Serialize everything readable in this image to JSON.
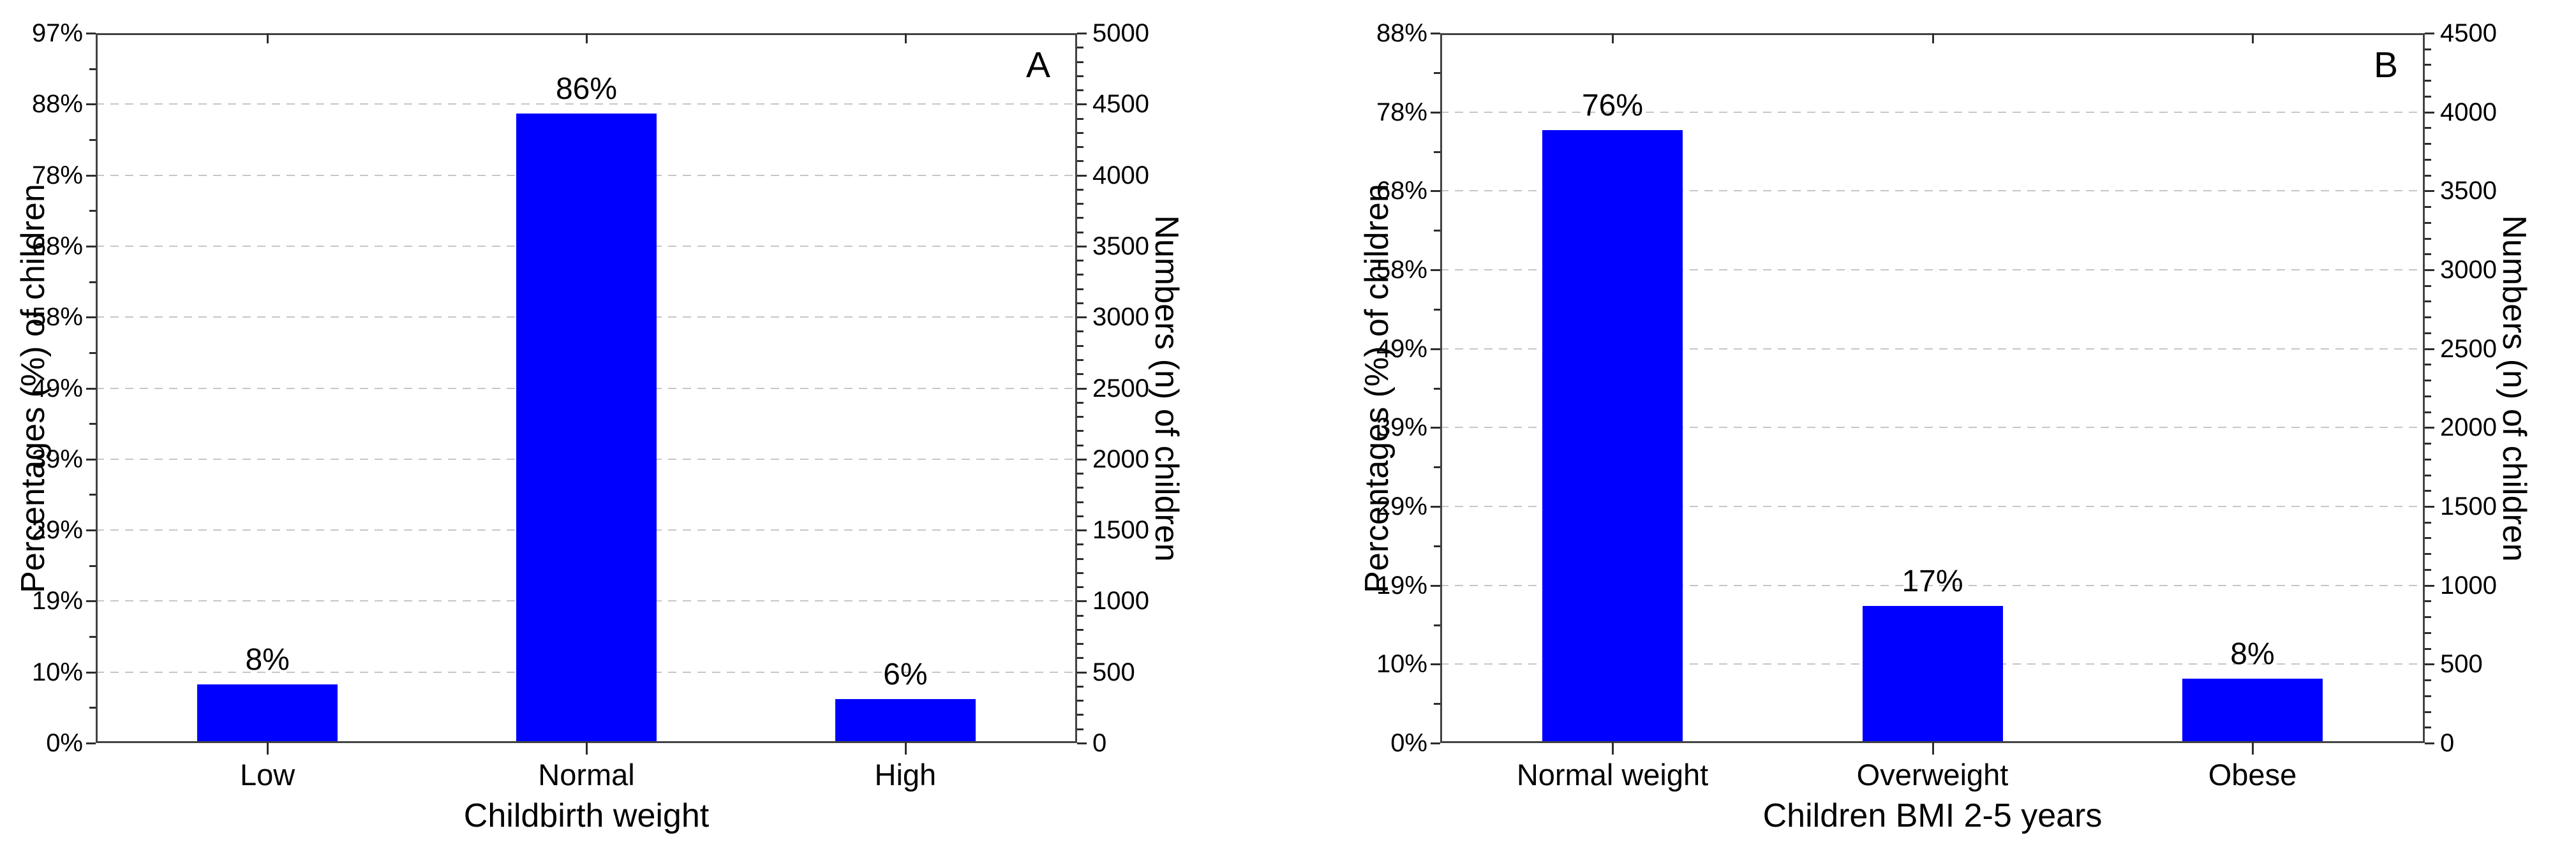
{
  "figure": {
    "background": "#ffffff",
    "bar_color": "#0000fe",
    "grid_color": "#c6c6c6",
    "frame_color": "#424242",
    "panel_letters": [
      "A",
      "B"
    ]
  },
  "chart_data": [
    {
      "type": "bar",
      "letter": "A",
      "categories": [
        "Low",
        "Normal",
        "High"
      ],
      "values": [
        8,
        86,
        6
      ],
      "bar_labels": [
        "8%",
        "86%",
        "6%"
      ],
      "xlabel": "Childbirth weight",
      "ylabel_left": "Percentages (%) of children",
      "ylabel_right": "Numbers (n) of children",
      "yticks_left": [
        "97%",
        "88%",
        "78%",
        "68%",
        "58%",
        "49%",
        "39%",
        "29%",
        "19%",
        "10%",
        "0%"
      ],
      "yticks_right": [
        "5000",
        "4500",
        "4000",
        "3500",
        "3000",
        "2500",
        "2000",
        "1500",
        "1000",
        "500",
        "0"
      ],
      "ylim_left_pct": [
        0,
        97
      ],
      "ylim_right_n": [
        0,
        5000
      ],
      "grid": "horizontal-dashed",
      "legend": "none",
      "bar_color": "#0000fe"
    },
    {
      "type": "bar",
      "letter": "B",
      "categories": [
        "Normal weight",
        "Overweight",
        "Obese"
      ],
      "values": [
        76,
        17,
        8
      ],
      "bar_labels": [
        "76%",
        "17%",
        "8%"
      ],
      "xlabel": "Children BMI 2-5 years",
      "ylabel_left": "Percentages (%) of children",
      "ylabel_right": "Numbers (n) of children",
      "yticks_left": [
        "88%",
        "78%",
        "68%",
        "58%",
        "49%",
        "39%",
        "29%",
        "19%",
        "10%",
        "0%"
      ],
      "yticks_right": [
        "4500",
        "4000",
        "3500",
        "3000",
        "2500",
        "2000",
        "1500",
        "1000",
        "500",
        "0"
      ],
      "ylim_left_pct": [
        0,
        88
      ],
      "ylim_right_n": [
        0,
        4500
      ],
      "grid": "horizontal-dashed",
      "legend": "none",
      "bar_color": "#0000fe"
    }
  ]
}
